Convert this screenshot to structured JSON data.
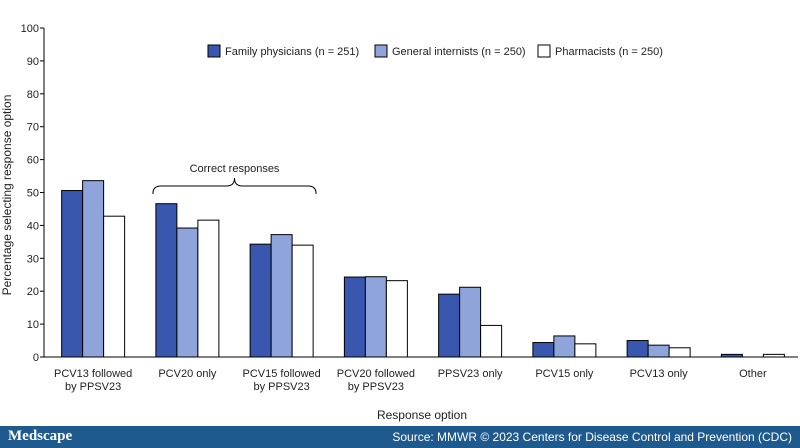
{
  "chart_data": {
    "type": "bar",
    "title": "",
    "xlabel": "Response option",
    "ylabel": "Percentage selecting response option",
    "ylim": [
      0,
      100
    ],
    "yticks": [
      0,
      10,
      20,
      30,
      40,
      50,
      60,
      70,
      80,
      90,
      100
    ],
    "grid": false,
    "legend_position": "top-center",
    "categories": [
      [
        "PCV13 followed",
        "by PPSV23"
      ],
      [
        "PCV20 only"
      ],
      [
        "PCV15 followed",
        "by PPSV23"
      ],
      [
        "PCV20 followed",
        "by PPSV23"
      ],
      [
        "PPSV23 only"
      ],
      [
        "PCV15 only"
      ],
      [
        "PCV13 only"
      ],
      [
        "Other"
      ]
    ],
    "series": [
      {
        "name": "Family physicians (n = 251)",
        "color": "#3a57b0",
        "values": [
          50.6,
          46.6,
          34.3,
          24.3,
          19.1,
          4.4,
          5.0,
          0.8
        ]
      },
      {
        "name": "General internists (n = 250)",
        "color": "#8ea4db",
        "values": [
          53.6,
          39.2,
          37.2,
          24.4,
          21.2,
          6.4,
          3.6,
          0.0
        ]
      },
      {
        "name": "Pharmacists (n = 250)",
        "color": "#ffffff",
        "values": [
          42.8,
          41.6,
          34.0,
          23.2,
          9.6,
          4.0,
          2.8,
          0.8
        ]
      }
    ],
    "annotation": {
      "text": "Correct responses",
      "spans_categories": [
        1,
        2
      ]
    }
  },
  "footer": {
    "brand": "Medscape",
    "source": "Source: MMWR © 2023 Centers for Disease Control and Prevention (CDC)",
    "background": "#1f5a8e"
  }
}
